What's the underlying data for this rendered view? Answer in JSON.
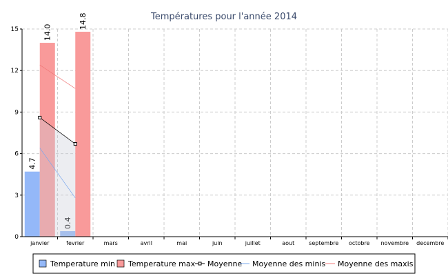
{
  "chart_data": {
    "type": "bar",
    "title": "Températures pour l'année 2014",
    "categories": [
      "janvier",
      "fevrier",
      "mars",
      "avril",
      "mai",
      "juin",
      "juillet",
      "aout",
      "septembre",
      "octobre",
      "novembre",
      "decembre"
    ],
    "series": [
      {
        "name": "Temperature min",
        "type": "bar",
        "color": "#94b8f8",
        "values": [
          4.7,
          0.4,
          null,
          null,
          null,
          null,
          null,
          null,
          null,
          null,
          null,
          null
        ],
        "value_labels": [
          "4.7",
          "0.4",
          null,
          null,
          null,
          null,
          null,
          null,
          null,
          null,
          null,
          null
        ]
      },
      {
        "name": "Temperature max",
        "type": "bar",
        "color": "#f99a9a",
        "values": [
          14.0,
          14.8,
          null,
          null,
          null,
          null,
          null,
          null,
          null,
          null,
          null,
          null
        ],
        "value_labels": [
          "14.0",
          "14.8",
          null,
          null,
          null,
          null,
          null,
          null,
          null,
          null,
          null,
          null
        ]
      },
      {
        "name": "Moyenne",
        "type": "line",
        "color": "#000000",
        "area": true,
        "markers": true,
        "values": [
          8.6,
          6.7,
          null,
          null,
          null,
          null,
          null,
          null,
          null,
          null,
          null,
          null
        ]
      },
      {
        "name": "Moyenne des minis",
        "type": "line",
        "color": "#7aa8ee",
        "values": [
          6.4,
          2.8,
          null,
          null,
          null,
          null,
          null,
          null,
          null,
          null,
          null,
          null
        ]
      },
      {
        "name": "Moyenne des maxis",
        "type": "line",
        "color": "#f07878",
        "values": [
          12.4,
          10.7,
          null,
          null,
          null,
          null,
          null,
          null,
          null,
          null,
          null,
          null
        ]
      }
    ],
    "ylim": [
      0,
      15
    ],
    "yticks": [
      0,
      3,
      6,
      9,
      12,
      15
    ],
    "grid": true,
    "legend": "bottom"
  }
}
